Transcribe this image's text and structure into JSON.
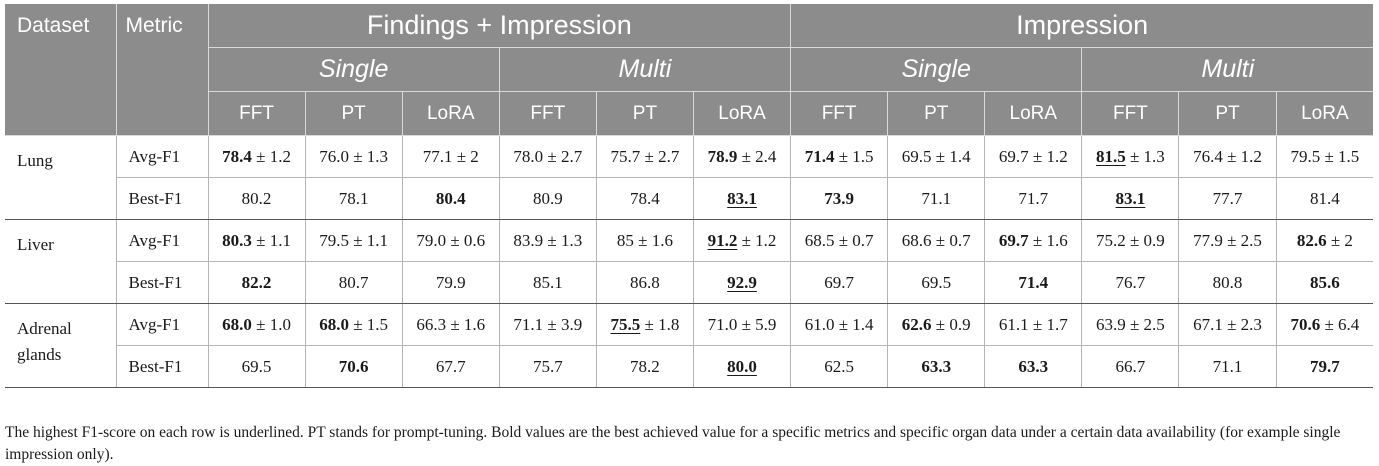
{
  "header": {
    "dataset": "Dataset",
    "metric": "Metric",
    "groups": [
      "Findings + Impression",
      "Impression"
    ],
    "subgroups": [
      "Single",
      "Multi",
      "Single",
      "Multi"
    ],
    "methods": [
      "FFT",
      "PT",
      "LoRA",
      "FFT",
      "PT",
      "LoRA",
      "FFT",
      "PT",
      "LoRA",
      "FFT",
      "PT",
      "LoRA"
    ]
  },
  "rows": [
    {
      "dataset": "Lung",
      "metrics": [
        {
          "name": "Avg-F1",
          "cells": [
            {
              "v": "78.4",
              "pm": " ± 1.2",
              "b": true,
              "u": false
            },
            {
              "v": "76.0",
              "pm": " ± 1.3",
              "b": false,
              "u": false
            },
            {
              "v": "77.1",
              "pm": " ± 2",
              "b": false,
              "u": false
            },
            {
              "v": "78.0",
              "pm": " ± 2.7",
              "b": false,
              "u": false
            },
            {
              "v": "75.7",
              "pm": " ± 2.7",
              "b": false,
              "u": false
            },
            {
              "v": "78.9",
              "pm": " ± 2.4",
              "b": true,
              "u": false
            },
            {
              "v": "71.4",
              "pm": " ± 1.5",
              "b": true,
              "u": false
            },
            {
              "v": "69.5",
              "pm": " ± 1.4",
              "b": false,
              "u": false
            },
            {
              "v": "69.7",
              "pm": " ± 1.2",
              "b": false,
              "u": false
            },
            {
              "v": "81.5",
              "pm": " ± 1.3",
              "b": true,
              "u": true
            },
            {
              "v": "76.4",
              "pm": " ± 1.2",
              "b": false,
              "u": false
            },
            {
              "v": "79.5",
              "pm": " ± 1.5",
              "b": false,
              "u": false
            }
          ]
        },
        {
          "name": "Best-F1",
          "cells": [
            {
              "v": "80.2",
              "pm": "",
              "b": false,
              "u": false
            },
            {
              "v": "78.1",
              "pm": "",
              "b": false,
              "u": false
            },
            {
              "v": "80.4",
              "pm": "",
              "b": true,
              "u": false
            },
            {
              "v": "80.9",
              "pm": "",
              "b": false,
              "u": false
            },
            {
              "v": "78.4",
              "pm": "",
              "b": false,
              "u": false
            },
            {
              "v": "83.1",
              "pm": "",
              "b": true,
              "u": true
            },
            {
              "v": "73.9",
              "pm": "",
              "b": true,
              "u": false
            },
            {
              "v": "71.1",
              "pm": "",
              "b": false,
              "u": false
            },
            {
              "v": "71.7",
              "pm": "",
              "b": false,
              "u": false
            },
            {
              "v": "83.1",
              "pm": "",
              "b": true,
              "u": true
            },
            {
              "v": "77.7",
              "pm": "",
              "b": false,
              "u": false
            },
            {
              "v": "81.4",
              "pm": "",
              "b": false,
              "u": false
            }
          ]
        }
      ]
    },
    {
      "dataset": "Liver",
      "metrics": [
        {
          "name": "Avg-F1",
          "cells": [
            {
              "v": "80.3",
              "pm": " ± 1.1",
              "b": true,
              "u": false
            },
            {
              "v": "79.5",
              "pm": " ± 1.1",
              "b": false,
              "u": false
            },
            {
              "v": "79.0",
              "pm": " ± 0.6",
              "b": false,
              "u": false
            },
            {
              "v": "83.9",
              "pm": " ± 1.3",
              "b": false,
              "u": false
            },
            {
              "v": "85",
              "pm": " ± 1.6",
              "b": false,
              "u": false
            },
            {
              "v": "91.2",
              "pm": " ± 1.2",
              "b": true,
              "u": true
            },
            {
              "v": "68.5",
              "pm": " ± 0.7",
              "b": false,
              "u": false
            },
            {
              "v": "68.6",
              "pm": " ± 0.7",
              "b": false,
              "u": false
            },
            {
              "v": "69.7",
              "pm": " ± 1.6",
              "b": true,
              "u": false
            },
            {
              "v": "75.2",
              "pm": " ± 0.9",
              "b": false,
              "u": false
            },
            {
              "v": "77.9",
              "pm": " ± 2.5",
              "b": false,
              "u": false
            },
            {
              "v": "82.6",
              "pm": " ± 2",
              "b": true,
              "u": false
            }
          ]
        },
        {
          "name": "Best-F1",
          "cells": [
            {
              "v": "82.2",
              "pm": "",
              "b": true,
              "u": false
            },
            {
              "v": "80.7",
              "pm": "",
              "b": false,
              "u": false
            },
            {
              "v": "79.9",
              "pm": "",
              "b": false,
              "u": false
            },
            {
              "v": "85.1",
              "pm": "",
              "b": false,
              "u": false
            },
            {
              "v": "86.8",
              "pm": "",
              "b": false,
              "u": false
            },
            {
              "v": "92.9",
              "pm": "",
              "b": true,
              "u": true
            },
            {
              "v": "69.7",
              "pm": "",
              "b": false,
              "u": false
            },
            {
              "v": "69.5",
              "pm": "",
              "b": false,
              "u": false
            },
            {
              "v": "71.4",
              "pm": "",
              "b": true,
              "u": false
            },
            {
              "v": "76.7",
              "pm": "",
              "b": false,
              "u": false
            },
            {
              "v": "80.8",
              "pm": "",
              "b": false,
              "u": false
            },
            {
              "v": "85.6",
              "pm": "",
              "b": true,
              "u": false
            }
          ]
        }
      ]
    },
    {
      "dataset": "Adrenal\nglands",
      "metrics": [
        {
          "name": "Avg-F1",
          "cells": [
            {
              "v": "68.0",
              "pm": " ± 1.0",
              "b": true,
              "u": false
            },
            {
              "v": "68.0",
              "pm": " ± 1.5",
              "b": true,
              "u": false
            },
            {
              "v": "66.3",
              "pm": " ± 1.6",
              "b": false,
              "u": false
            },
            {
              "v": "71.1",
              "pm": " ± 3.9",
              "b": false,
              "u": false
            },
            {
              "v": "75.5",
              "pm": " ± 1.8",
              "b": true,
              "u": true
            },
            {
              "v": "71.0",
              "pm": " ± 5.9",
              "b": false,
              "u": false
            },
            {
              "v": "61.0",
              "pm": " ± 1.4",
              "b": false,
              "u": false
            },
            {
              "v": "62.6",
              "pm": " ± 0.9",
              "b": true,
              "u": false
            },
            {
              "v": "61.1",
              "pm": " ± 1.7",
              "b": false,
              "u": false
            },
            {
              "v": "63.9",
              "pm": " ± 2.5",
              "b": false,
              "u": false
            },
            {
              "v": "67.1",
              "pm": " ± 2.3",
              "b": false,
              "u": false
            },
            {
              "v": "70.6",
              "pm": " ± 6.4",
              "b": true,
              "u": false
            }
          ]
        },
        {
          "name": "Best-F1",
          "cells": [
            {
              "v": "69.5",
              "pm": "",
              "b": false,
              "u": false
            },
            {
              "v": "70.6",
              "pm": "",
              "b": true,
              "u": false
            },
            {
              "v": "67.7",
              "pm": "",
              "b": false,
              "u": false
            },
            {
              "v": "75.7",
              "pm": "",
              "b": false,
              "u": false
            },
            {
              "v": "78.2",
              "pm": "",
              "b": false,
              "u": false
            },
            {
              "v": "80.0",
              "pm": "",
              "b": true,
              "u": true
            },
            {
              "v": "62.5",
              "pm": "",
              "b": false,
              "u": false
            },
            {
              "v": "63.3",
              "pm": "",
              "b": true,
              "u": false
            },
            {
              "v": "63.3",
              "pm": "",
              "b": true,
              "u": false
            },
            {
              "v": "66.7",
              "pm": "",
              "b": false,
              "u": false
            },
            {
              "v": "71.1",
              "pm": "",
              "b": false,
              "u": false
            },
            {
              "v": "79.7",
              "pm": "",
              "b": true,
              "u": false
            }
          ]
        }
      ]
    }
  ],
  "footnote": "The highest F1-score on each row is underlined. PT stands for prompt-tuning. Bold values are the best achieved value for a specific metrics and specific organ data under a certain data availability (for example single impression only)."
}
